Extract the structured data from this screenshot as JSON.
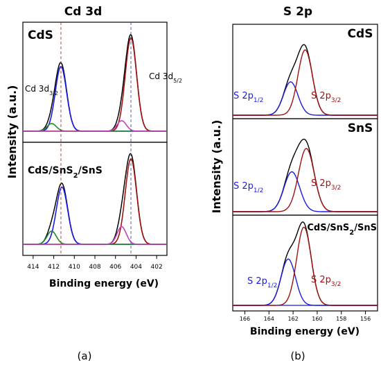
{
  "colors": {
    "black": "#000000",
    "blue": "#1a1ae6",
    "red": "#a01010",
    "green": "#1e8c1e",
    "magenta": "#c040c0",
    "baseline": "#2ea52e",
    "dash_red": "#b03030",
    "dash_blue": "#4a4aa0"
  },
  "captions": {
    "a": "(a)",
    "b": "(b)"
  },
  "chart_data": [
    {
      "type": "line",
      "title": "Cd 3d",
      "xlabel": "Binding energy (eV)",
      "ylabel": "Intensity (a.u.)",
      "xlim": [
        415,
        401
      ],
      "x_reversed": true,
      "xticks": [
        "414",
        "412",
        "410",
        "408",
        "406",
        "404",
        "402"
      ],
      "reference_lines": [
        411.3,
        404.5
      ],
      "panels": [
        {
          "sample": "CdS",
          "sample_lines": [
            "CdS"
          ],
          "peak_labels": [
            {
              "text": "Cd 3d",
              "sub": "3/2",
              "color": "black"
            },
            {
              "text": "Cd 3d",
              "sub": "5/2",
              "color": "black"
            }
          ],
          "series": [
            {
              "component": "envelope",
              "color": "black",
              "peaks": [
                {
                  "center": 411.3,
                  "height": 0.71,
                  "width": 0.55
                },
                {
                  "center": 404.5,
                  "height": 1.0,
                  "width": 0.55
                },
                {
                  "center": 412.2,
                  "height": 0.08,
                  "width": 0.45
                },
                {
                  "center": 405.4,
                  "height": 0.11,
                  "width": 0.45
                }
              ]
            },
            {
              "component": "Cd 3d3/2",
              "color": "blue",
              "peaks": [
                {
                  "center": 411.3,
                  "height": 0.68,
                  "width": 0.55
                }
              ]
            },
            {
              "component": "Cd 3d5/2",
              "color": "red",
              "peaks": [
                {
                  "center": 404.5,
                  "height": 0.98,
                  "width": 0.55
                }
              ]
            },
            {
              "component": "satellite 3d3/2",
              "color": "green",
              "peaks": [
                {
                  "center": 412.2,
                  "height": 0.08,
                  "width": 0.45
                }
              ]
            },
            {
              "component": "satellite 3d5/2",
              "color": "magenta",
              "peaks": [
                {
                  "center": 405.4,
                  "height": 0.11,
                  "width": 0.45
                }
              ]
            }
          ]
        },
        {
          "sample": "CdS/SnS2/SnS",
          "sample_lines": [
            "CdS/SnS2/SnS"
          ],
          "peak_labels": [],
          "series": [
            {
              "component": "envelope",
              "color": "black",
              "peaks": [
                {
                  "center": 411.2,
                  "height": 0.68,
                  "width": 0.55
                },
                {
                  "center": 404.5,
                  "height": 1.0,
                  "width": 0.55
                },
                {
                  "center": 412.2,
                  "height": 0.15,
                  "width": 0.45
                },
                {
                  "center": 405.4,
                  "height": 0.2,
                  "width": 0.45
                }
              ]
            },
            {
              "component": "Cd 3d3/2",
              "color": "blue",
              "peaks": [
                {
                  "center": 411.2,
                  "height": 0.65,
                  "width": 0.55
                }
              ]
            },
            {
              "component": "Cd 3d5/2",
              "color": "red",
              "peaks": [
                {
                  "center": 404.5,
                  "height": 0.97,
                  "width": 0.55
                }
              ]
            },
            {
              "component": "satellite 3d3/2",
              "color": "green",
              "peaks": [
                {
                  "center": 412.2,
                  "height": 0.15,
                  "width": 0.45
                }
              ]
            },
            {
              "component": "satellite 3d5/2",
              "color": "magenta",
              "peaks": [
                {
                  "center": 405.4,
                  "height": 0.2,
                  "width": 0.45
                }
              ]
            }
          ]
        }
      ]
    },
    {
      "type": "line",
      "title": "S 2p",
      "xlabel": "Binding energy (eV)",
      "ylabel": "Intensity (a.u.)",
      "xlim": [
        167,
        155
      ],
      "x_reversed": true,
      "xticks": [
        "166",
        "164",
        "162",
        "160",
        "158",
        "156"
      ],
      "panels": [
        {
          "sample": "CdS",
          "peak_labels": [
            {
              "text": "S 2p",
              "sub": "1/2",
              "color": "blue"
            },
            {
              "text": "S 2p",
              "sub": "3/2",
              "color": "red"
            }
          ],
          "series": [
            {
              "component": "envelope",
              "color": "black",
              "peaks": [
                {
                  "center": 162.2,
                  "height": 0.5,
                  "width": 0.6
                },
                {
                  "center": 161.0,
                  "height": 0.98,
                  "width": 0.6
                }
              ]
            },
            {
              "component": "S 2p1/2",
              "color": "blue",
              "peaks": [
                {
                  "center": 162.2,
                  "height": 0.5,
                  "width": 0.6
                }
              ]
            },
            {
              "component": "S 2p3/2",
              "color": "red",
              "peaks": [
                {
                  "center": 161.0,
                  "height": 0.98,
                  "width": 0.6
                }
              ]
            }
          ]
        },
        {
          "sample": "SnS",
          "peak_labels": [
            {
              "text": "S 2p",
              "sub": "1/2",
              "color": "blue"
            },
            {
              "text": "S 2p",
              "sub": "3/2",
              "color": "red"
            }
          ],
          "series": [
            {
              "component": "envelope",
              "color": "black",
              "peaks": [
                {
                  "center": 162.1,
                  "height": 0.58,
                  "width": 0.65
                },
                {
                  "center": 160.9,
                  "height": 0.92,
                  "width": 0.65
                }
              ]
            },
            {
              "component": "S 2p1/2",
              "color": "blue",
              "peaks": [
                {
                  "center": 162.1,
                  "height": 0.58,
                  "width": 0.65
                }
              ]
            },
            {
              "component": "S 2p3/2",
              "color": "red",
              "peaks": [
                {
                  "center": 160.9,
                  "height": 0.92,
                  "width": 0.65
                }
              ]
            }
          ]
        },
        {
          "sample": "CdS/SnS2/SnS",
          "peak_labels": [
            {
              "text": "S 2p",
              "sub": "1/2",
              "color": "blue"
            },
            {
              "text": "S 2p",
              "sub": "3/2",
              "color": "red"
            }
          ],
          "series": [
            {
              "component": "envelope",
              "color": "black",
              "peaks": [
                {
                  "center": 162.4,
                  "height": 0.58,
                  "width": 0.6
                },
                {
                  "center": 161.1,
                  "height": 0.98,
                  "width": 0.6
                }
              ]
            },
            {
              "component": "S 2p1/2",
              "color": "blue",
              "peaks": [
                {
                  "center": 162.4,
                  "height": 0.58,
                  "width": 0.6
                }
              ]
            },
            {
              "component": "S 2p3/2",
              "color": "red",
              "peaks": [
                {
                  "center": 161.1,
                  "height": 0.98,
                  "width": 0.6
                }
              ]
            }
          ]
        }
      ]
    }
  ]
}
